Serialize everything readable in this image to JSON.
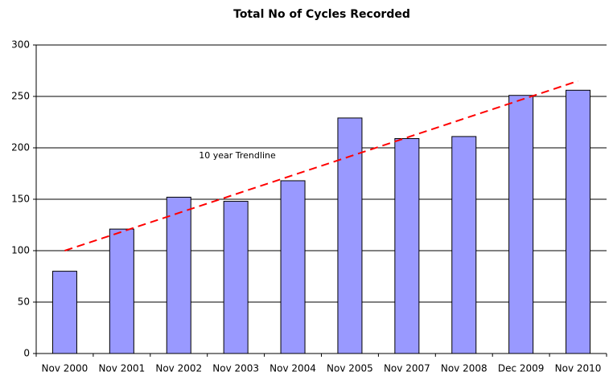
{
  "chart_data": {
    "type": "bar",
    "title": "Total No of Cycles Recorded",
    "categories": [
      "Nov 2000",
      "Nov 2001",
      "Nov 2002",
      "Nov 2003",
      "Nov 2004",
      "Nov 2005",
      "Nov 2007",
      "Nov 2008",
      "Dec 2009",
      "Nov 2010"
    ],
    "values": [
      80,
      121,
      152,
      148,
      168,
      229,
      209,
      211,
      251,
      256
    ],
    "color": "#9999ff",
    "ylim": [
      0,
      300
    ],
    "yticks": [
      0,
      50,
      100,
      150,
      200,
      250,
      300
    ],
    "grid": true,
    "trendline": {
      "label": "10 year Trendline",
      "start": 100,
      "end": 265,
      "color": "#ff0000"
    }
  }
}
